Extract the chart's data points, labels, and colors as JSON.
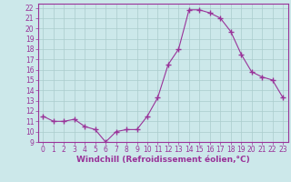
{
  "x": [
    0,
    1,
    2,
    3,
    4,
    5,
    6,
    7,
    8,
    9,
    10,
    11,
    12,
    13,
    14,
    15,
    16,
    17,
    18,
    19,
    20,
    21,
    22,
    23
  ],
  "y": [
    11.5,
    11.0,
    11.0,
    11.2,
    10.5,
    10.2,
    9.0,
    10.0,
    10.2,
    10.2,
    11.5,
    13.3,
    16.5,
    18.0,
    21.8,
    21.8,
    21.5,
    21.0,
    19.7,
    17.5,
    15.8,
    15.3,
    15.0,
    13.3
  ],
  "line_color": "#993399",
  "marker": "+",
  "marker_size": 4,
  "marker_lw": 1.0,
  "bg_color": "#cce8ea",
  "grid_color": "#aacccc",
  "xlabel": "Windchill (Refroidissement éolien,°C)",
  "xlabel_color": "#993399",
  "ylim": [
    9,
    22.4
  ],
  "xlim": [
    -0.5,
    23.5
  ],
  "yticks": [
    9,
    10,
    11,
    12,
    13,
    14,
    15,
    16,
    17,
    18,
    19,
    20,
    21,
    22
  ],
  "xticks": [
    0,
    1,
    2,
    3,
    4,
    5,
    6,
    7,
    8,
    9,
    10,
    11,
    12,
    13,
    14,
    15,
    16,
    17,
    18,
    19,
    20,
    21,
    22,
    23
  ],
  "tick_color": "#993399",
  "spine_color": "#993399",
  "tick_fontsize": 5.5,
  "xlabel_fontsize": 6.5
}
